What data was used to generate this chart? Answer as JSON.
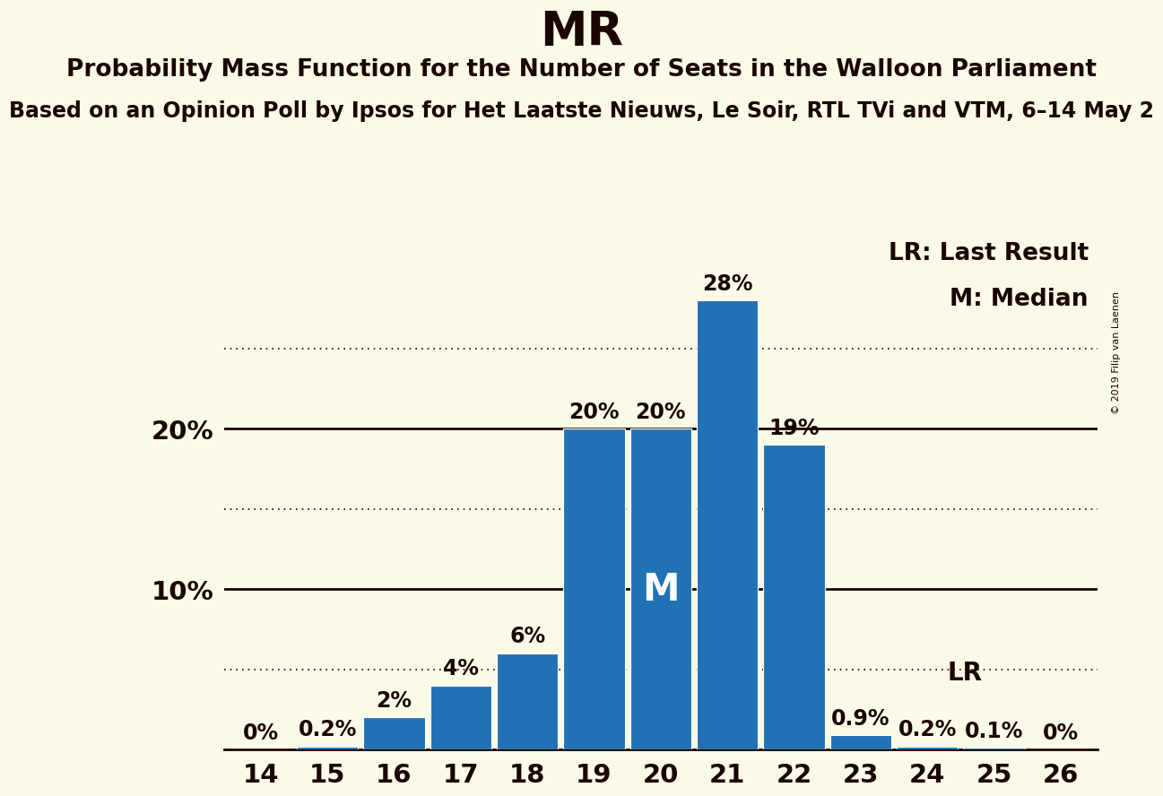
{
  "title": "MR",
  "subtitle": "Probability Mass Function for the Number of Seats in the Walloon Parliament",
  "subtitle2": "Based on an Opinion Poll by Ipsos for Het Laatste Nieuws, Le Soir, RTL TVi and VTM, 6–14 May 2",
  "copyright": "© 2019 Filip van Laenen",
  "seats": [
    14,
    15,
    16,
    17,
    18,
    19,
    20,
    21,
    22,
    23,
    24,
    25,
    26
  ],
  "probabilities": [
    0.0,
    0.2,
    2.0,
    4.0,
    6.0,
    20.0,
    20.0,
    28.0,
    19.0,
    0.9,
    0.2,
    0.1,
    0.0
  ],
  "bar_color": "#2171b5",
  "background_color": "#FAFAE6",
  "text_color": "#1a0500",
  "median_seat": 20,
  "lr_seat": 23,
  "ylim": [
    0,
    32
  ],
  "yticks": [
    10,
    20
  ],
  "ytick_labels": [
    "10%",
    "20%"
  ],
  "solid_lines": [
    10,
    20
  ],
  "dotted_lines": [
    5,
    15,
    25
  ],
  "title_fontsize": 38,
  "subtitle_fontsize": 19,
  "subtitle2_fontsize": 17,
  "bar_label_fontsize": 17,
  "axis_label_fontsize": 21,
  "legend_fontsize": 19,
  "median_label_fontsize": 30,
  "lr_label_fontsize": 20
}
